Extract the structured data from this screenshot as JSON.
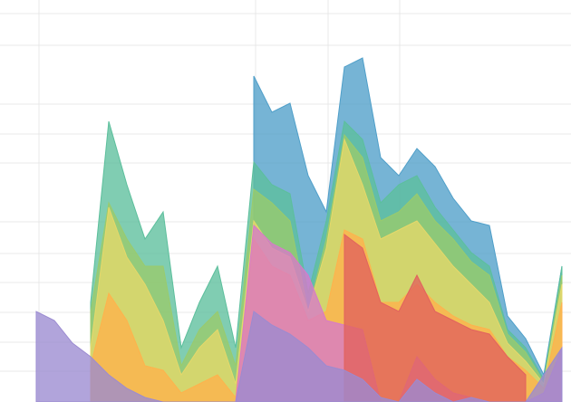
{
  "chart_data": {
    "type": "area",
    "x": [
      0,
      1,
      2,
      3,
      4,
      5,
      6,
      7,
      8,
      9,
      10,
      11,
      12,
      13,
      14,
      15,
      16,
      17,
      18,
      19,
      20,
      21,
      22,
      23,
      24,
      25,
      26,
      27,
      28,
      29,
      30,
      31
    ],
    "xlim": [
      0,
      31.5
    ],
    "ylim": [
      0,
      444
    ],
    "xticks": [
      2.15,
      14.1,
      18.1,
      22.05
    ],
    "yticks": [
      34,
      66,
      99,
      132,
      164,
      199,
      264,
      296,
      329,
      394,
      429
    ],
    "grid": true,
    "opacity": 0.78,
    "series": [
      {
        "color": "#4f9fc9",
        "values": [
          null,
          null,
          null,
          null,
          null,
          null,
          null,
          null,
          null,
          null,
          null,
          null,
          null,
          null,
          360,
          320,
          330,
          250,
          210,
          370,
          380,
          270,
          250,
          280,
          260,
          225,
          200,
          195,
          95,
          70,
          30,
          150
        ]
      },
      {
        "color": "#5cbf9c",
        "values": [
          null,
          null,
          null,
          null,
          null,
          110,
          310,
          240,
          180,
          210,
          60,
          110,
          150,
          60,
          265,
          240,
          230,
          120,
          200,
          310,
          290,
          220,
          240,
          250,
          215,
          190,
          165,
          150,
          80,
          60,
          25,
          150
        ]
      },
      {
        "color": "#9acb6c",
        "values": [
          null,
          null,
          null,
          null,
          null,
          100,
          220,
          180,
          150,
          150,
          40,
          80,
          100,
          40,
          235,
          220,
          200,
          100,
          180,
          295,
          270,
          200,
          210,
          230,
          200,
          180,
          155,
          140,
          75,
          55,
          22,
          140
        ]
      },
      {
        "color": "#e6d86a",
        "values": [
          null,
          null,
          null,
          null,
          null,
          60,
          215,
          160,
          130,
          90,
          30,
          60,
          80,
          20,
          200,
          170,
          160,
          100,
          170,
          290,
          240,
          180,
          190,
          200,
          175,
          150,
          130,
          110,
          65,
          45,
          20,
          130
        ]
      },
      {
        "color": "#ffb24c",
        "values": [
          null,
          null,
          null,
          null,
          null,
          40,
          120,
          90,
          40,
          35,
          10,
          20,
          30,
          5,
          180,
          150,
          140,
          90,
          100,
          190,
          180,
          110,
          110,
          130,
          110,
          95,
          85,
          80,
          50,
          35,
          15,
          110
        ]
      },
      {
        "color": "#d77ac9",
        "values": [
          null,
          null,
          null,
          null,
          null,
          null,
          null,
          null,
          null,
          null,
          null,
          null,
          null,
          0,
          195,
          175,
          165,
          140,
          90,
          85,
          80,
          0,
          0,
          50,
          25,
          10,
          5,
          0,
          0,
          0,
          10,
          60
        ]
      },
      {
        "color": "#e2625e",
        "values": [
          null,
          null,
          null,
          null,
          null,
          null,
          null,
          null,
          null,
          null,
          null,
          null,
          null,
          null,
          null,
          null,
          null,
          null,
          null,
          185,
          170,
          110,
          100,
          140,
          100,
          90,
          80,
          75,
          50,
          30,
          null,
          null
        ]
      },
      {
        "color": "#9b8bd1",
        "values": [
          null,
          null,
          100,
          90,
          65,
          50,
          30,
          15,
          5,
          0,
          0,
          0,
          0,
          0,
          100,
          85,
          75,
          60,
          40,
          35,
          25,
          5,
          0,
          25,
          10,
          0,
          5,
          0,
          0,
          0,
          30,
          60
        ]
      }
    ]
  }
}
